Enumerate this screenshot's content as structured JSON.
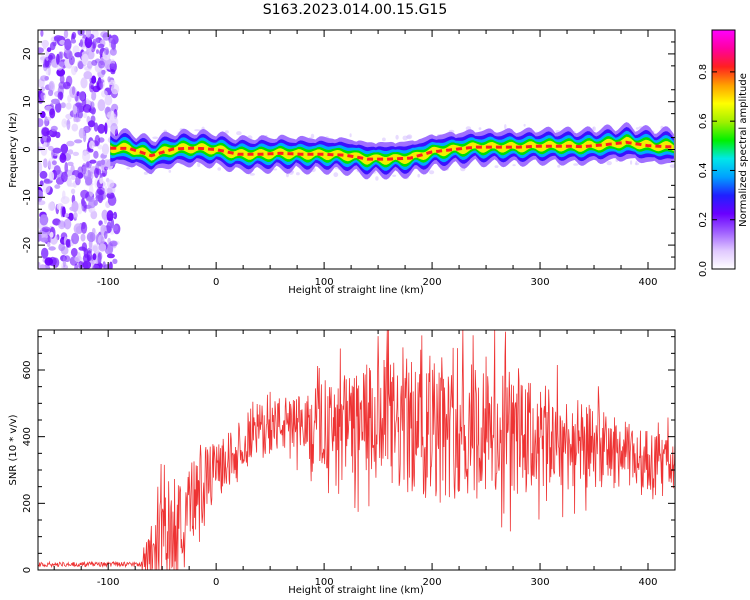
{
  "title": "S163.2023.014.00.15.G15",
  "chart_data": [
    {
      "type": "heatmap",
      "xlabel": "Height of straight line (km)",
      "ylabel": "Frequency (Hz)",
      "xlim": [
        -165,
        425
      ],
      "ylim": [
        -25,
        25
      ],
      "xticks": [
        "-100",
        "0",
        "100",
        "200",
        "300",
        "400"
      ],
      "xtick_values": [
        -100,
        0,
        100,
        200,
        300,
        400
      ],
      "yticks": [
        "20",
        "10",
        "0",
        "-10",
        "-20"
      ],
      "ytick_values": [
        20,
        10,
        0,
        -10,
        -20
      ],
      "noise_region_x": [
        -165,
        -92
      ],
      "ridge": {
        "x": [
          -100,
          -80,
          -60,
          -40,
          -20,
          0,
          20,
          40,
          60,
          80,
          100,
          120,
          140,
          160,
          180,
          200,
          220,
          240,
          260,
          280,
          300,
          320,
          340,
          360,
          380,
          400,
          425
        ],
        "y": [
          0.3,
          0.2,
          -1.3,
          0.1,
          0.3,
          0,
          -1,
          -1,
          -0.8,
          -1,
          -1,
          -1.2,
          -2,
          -2,
          -1.8,
          -0.5,
          0,
          0.5,
          0.5,
          0.5,
          0.7,
          0.7,
          0.6,
          1,
          1.5,
          0.8,
          0.5
        ]
      },
      "colorbar": {
        "label": "Normalized spectral amplitude",
        "ticks": [
          "0.0",
          "0.2",
          "0.4",
          "0.6",
          "0.8"
        ],
        "tick_values": [
          0,
          0.2,
          0.4,
          0.6,
          0.8
        ],
        "range": [
          0,
          0.97
        ],
        "colors": [
          "#ffffff",
          "#e0c8ff",
          "#a060ff",
          "#6a00ff",
          "#2020ff",
          "#00a0ff",
          "#00e8e8",
          "#00f000",
          "#a0f000",
          "#ffff00",
          "#ffa000",
          "#ff2020",
          "#ff00a0",
          "#ff00ff"
        ]
      }
    },
    {
      "type": "line",
      "xlabel": "Height of straight line (km)",
      "ylabel": "SNR (10 * v/v)",
      "xlim": [
        -165,
        425
      ],
      "ylim": [
        0,
        720
      ],
      "xticks": [
        "-100",
        "0",
        "100",
        "200",
        "300",
        "400"
      ],
      "xtick_values": [
        -100,
        0,
        100,
        200,
        300,
        400
      ],
      "yticks": [
        "0",
        "200",
        "400",
        "600"
      ],
      "ytick_values": [
        0,
        200,
        400,
        600
      ],
      "series_color": "#ee3333",
      "envelope": {
        "x": [
          -165,
          -70,
          -65,
          -60,
          -55,
          -50,
          -45,
          -40,
          -30,
          -20,
          -10,
          0,
          10,
          20,
          30,
          40,
          50,
          60,
          70,
          80,
          90,
          100,
          120,
          140,
          160,
          180,
          200,
          220,
          240,
          260,
          280,
          300,
          320,
          340,
          360,
          380,
          400,
          425
        ],
        "y": [
          10,
          10,
          40,
          75,
          70,
          95,
          110,
          120,
          180,
          220,
          265,
          295,
          330,
          370,
          400,
          425,
          430,
          440,
          430,
          430,
          425,
          425,
          430,
          440,
          430,
          425,
          420,
          410,
          405,
          400,
          400,
          395,
          385,
          375,
          360,
          345,
          330,
          320
        ],
        "noise_fraction": [
          0.6,
          0.6,
          0.9,
          1,
          1,
          1,
          0.9,
          0.8,
          0.4,
          0.35,
          0.25,
          0.18,
          0.15,
          0.12,
          0.12,
          0.12,
          0.12,
          0.12,
          0.13,
          0.14,
          0.16,
          0.18,
          0.22,
          0.26,
          0.3,
          0.3,
          0.3,
          0.3,
          0.3,
          0.3,
          0.28,
          0.26,
          0.24,
          0.22,
          0.2,
          0.18,
          0.17,
          0.16
        ]
      },
      "peaks": [
        {
          "x": 268,
          "y": 715
        },
        {
          "x": 173,
          "y": 668
        },
        {
          "x": 158,
          "y": 640
        },
        {
          "x": 202,
          "y": 620
        },
        {
          "x": 240,
          "y": 600
        },
        {
          "x": 280,
          "y": 605
        },
        {
          "x": 195,
          "y": 590
        },
        {
          "x": 250,
          "y": 640
        }
      ]
    }
  ]
}
